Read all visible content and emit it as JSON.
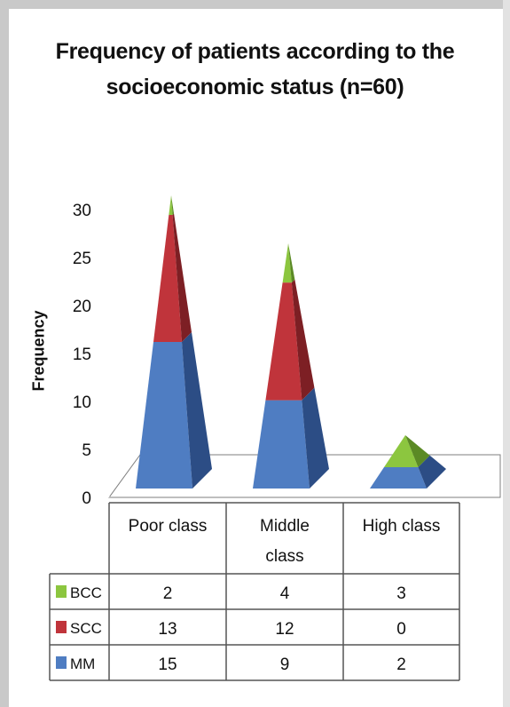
{
  "chart_data": {
    "type": "bar",
    "subtype": "stacked-pyramid-3d",
    "title": "Frequency of patients according to the socioeconomic status (n=60)",
    "ylabel": "Frequency",
    "xlabel": "",
    "ylim": [
      0,
      30
    ],
    "yticks": [
      0,
      5,
      10,
      15,
      20,
      25,
      30
    ],
    "categories": [
      "Poor class",
      "Middle class",
      "High class"
    ],
    "category_lines": [
      [
        "Poor class"
      ],
      [
        "Middle",
        "class"
      ],
      [
        "High class"
      ]
    ],
    "series": [
      {
        "name": "MM",
        "values": [
          15,
          9,
          2
        ],
        "color": "#4f7dc2",
        "dark": "#2c4d85"
      },
      {
        "name": "SCC",
        "values": [
          13,
          12,
          0
        ],
        "color": "#c0343b",
        "dark": "#7d1f24"
      },
      {
        "name": "BCC",
        "values": [
          2,
          4,
          3
        ],
        "color": "#8cc63f",
        "dark": "#5b8a25"
      }
    ],
    "data_table": true,
    "legend": "data-table"
  }
}
